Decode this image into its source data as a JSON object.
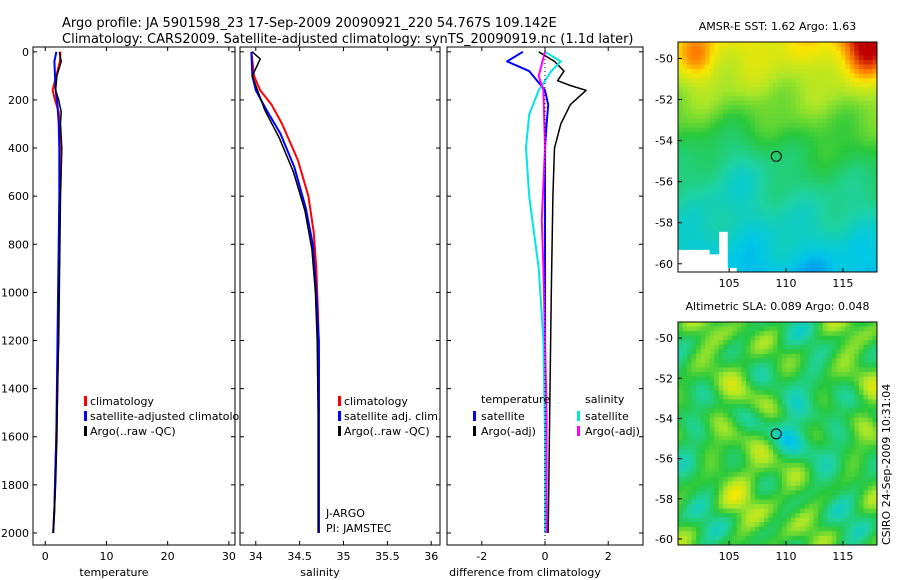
{
  "header": {
    "line1": "Argo profile: JA 5901598_23 17-Sep-2009 20090921_220 54.767S 109.142E",
    "line2": "Climatology: CARS2009. Satellite-adjusted climatology: synTS_20090919.nc (1.1d later)"
  },
  "stamp": "CSIRO 24-Sep-2009 10:31:04",
  "colors": {
    "red": "#ff0000",
    "blue": "#0000ff",
    "black": "#000000",
    "cyan": "#00e6e6",
    "magenta": "#ff00ff"
  },
  "chart_data": [
    {
      "type": "line",
      "id": "temperature",
      "xlabel": "temperature",
      "ylabel": "",
      "xlim": [
        -2,
        31
      ],
      "ylim": [
        2050,
        -20
      ],
      "xticks": [
        0,
        10,
        20,
        30
      ],
      "yticks": [
        0,
        200,
        400,
        600,
        800,
        1000,
        1200,
        1400,
        1600,
        1800,
        2000
      ],
      "series": [
        {
          "name": "climatology",
          "color": "red",
          "width": 2,
          "x": [
            2.5,
            2.4,
            1.8,
            1.2,
            1.6,
            2.2,
            2.4,
            2.4,
            2.4,
            2.3,
            2.2,
            2.1,
            2.0,
            1.9,
            1.8,
            1.6,
            1.5,
            1.3
          ],
          "y": [
            0,
            40,
            100,
            160,
            200,
            250,
            300,
            400,
            600,
            800,
            1000,
            1200,
            1400,
            1500,
            1600,
            1800,
            1900,
            2000
          ]
        },
        {
          "name": "satellite-adjusted climatology",
          "color": "blue",
          "width": 2,
          "x": [
            1.8,
            1.5,
            1.6,
            1.7,
            2.0,
            2.2,
            2.3,
            2.3,
            2.3,
            2.2,
            2.1,
            2.0,
            1.9,
            1.8,
            1.6,
            1.5,
            1.3
          ],
          "y": [
            0,
            40,
            100,
            160,
            220,
            300,
            400,
            500,
            600,
            800,
            1000,
            1200,
            1400,
            1600,
            1800,
            1900,
            2000
          ]
        },
        {
          "name": "Argo(..raw -QC)",
          "color": "black",
          "width": 1.5,
          "x": [
            2.3,
            2.6,
            1.9,
            1.7,
            2.2,
            2.6,
            2.5,
            2.7,
            2.6,
            2.5,
            2.4,
            2.3,
            2.2,
            2.0,
            1.9,
            1.7,
            1.5,
            1.3
          ],
          "y": [
            0,
            40,
            100,
            160,
            200,
            250,
            300,
            400,
            500,
            600,
            800,
            1000,
            1200,
            1400,
            1600,
            1800,
            1900,
            2000
          ]
        }
      ],
      "legend": [
        "climatology",
        "satellite-adjusted climatology",
        "Argo(..raw -QC)"
      ]
    },
    {
      "type": "line",
      "id": "salinity",
      "xlabel": "salinity",
      "ylabel": "",
      "xlim": [
        33.82,
        36.1
      ],
      "ylim": [
        2050,
        -20
      ],
      "xticks": [
        34,
        34.5,
        35,
        35.5,
        36
      ],
      "xticklabels": [
        "34",
        "34.5",
        "35",
        "35.5",
        "36"
      ],
      "series": [
        {
          "name": "climatology",
          "color": "red",
          "width": 2,
          "x": [
            33.95,
            33.98,
            34.05,
            34.18,
            34.3,
            34.48,
            34.6,
            34.66,
            34.69,
            34.71,
            34.72,
            34.72,
            34.72,
            34.72
          ],
          "y": [
            0,
            100,
            160,
            220,
            300,
            450,
            600,
            750,
            900,
            1100,
            1300,
            1500,
            1800,
            2000
          ]
        },
        {
          "name": "satellite adj. clim.",
          "color": "blue",
          "width": 2,
          "x": [
            33.95,
            33.96,
            34.0,
            34.12,
            34.28,
            34.44,
            34.57,
            34.65,
            34.69,
            34.72,
            34.72,
            34.72,
            34.72
          ],
          "y": [
            0,
            100,
            160,
            240,
            340,
            480,
            650,
            800,
            1000,
            1200,
            1500,
            1800,
            2000
          ]
        },
        {
          "name": "Argo(..raw -QC)",
          "color": "black",
          "width": 1.5,
          "x": [
            33.96,
            34.05,
            33.96,
            34.02,
            34.1,
            34.27,
            34.43,
            34.56,
            34.64,
            34.68,
            34.7,
            34.71,
            34.71,
            34.71
          ],
          "y": [
            0,
            30,
            100,
            160,
            240,
            360,
            500,
            660,
            820,
            1000,
            1200,
            1500,
            1800,
            2000
          ]
        }
      ],
      "legend": [
        "climatology",
        "satellite adj. clim.",
        "Argo(..raw -QC)"
      ],
      "annotations": [
        "J-ARGO",
        "PI: JAMSTEC"
      ]
    },
    {
      "type": "line",
      "id": "difference",
      "xlabel": "difference from climatology",
      "ylabel": "",
      "xlim": [
        -3.1,
        3.1
      ],
      "ylim": [
        2050,
        -20
      ],
      "xticks": [
        -2,
        0,
        2
      ],
      "series": [
        {
          "name": "temperature satellite",
          "color": "blue",
          "width": 2,
          "x": [
            -0.7,
            -1.2,
            -0.5,
            0.0,
            0.1,
            0.05,
            0.0,
            0.0,
            0.0,
            0.0,
            0.0,
            0.0,
            0.0
          ],
          "y": [
            0,
            40,
            80,
            160,
            220,
            300,
            400,
            600,
            800,
            1000,
            1400,
            1800,
            2000
          ]
        },
        {
          "name": "temperature Argo(-adj)",
          "color": "black",
          "width": 1.5,
          "x": [
            -0.2,
            0.3,
            0.6,
            0.4,
            0.8,
            1.3,
            0.8,
            0.5,
            0.3,
            0.25,
            0.2,
            0.15,
            0.1
          ],
          "y": [
            0,
            40,
            80,
            120,
            140,
            160,
            220,
            300,
            400,
            600,
            1000,
            1500,
            2000
          ]
        },
        {
          "name": "salinity satellite",
          "color": "cyan",
          "width": 2,
          "x": [
            0.0,
            0.5,
            0.2,
            -0.2,
            -0.5,
            -0.6,
            -0.5,
            -0.2,
            -0.05,
            0.0,
            0.0
          ],
          "y": [
            0,
            40,
            80,
            160,
            260,
            400,
            600,
            900,
            1200,
            1600,
            2000
          ]
        },
        {
          "name": "salinity Argo(-adj)",
          "color": "magenta",
          "width": 2,
          "x": [
            0.0,
            -0.2,
            -0.05,
            0.0,
            -0.1,
            -0.05,
            0.0,
            0.05,
            0.05,
            0.05
          ],
          "y": [
            0,
            100,
            160,
            400,
            700,
            900,
            1200,
            1500,
            1800,
            2000
          ]
        }
      ],
      "legend_groups": [
        {
          "title": "temperature",
          "items": [
            "satellite",
            "Argo(-adj)"
          ]
        },
        {
          "title": "salinity",
          "items": [
            "satellite",
            "Argo(-adj)"
          ]
        }
      ]
    },
    {
      "type": "heatmap",
      "id": "sst-map",
      "title": "AMSR-E SST: 1.62 Argo: 1.63",
      "xlim": [
        100.5,
        118
      ],
      "ylim": [
        -60.4,
        -49.2
      ],
      "xticks": [
        105,
        110,
        115
      ],
      "yticks": [
        -50,
        -52,
        -54,
        -56,
        -58,
        -60
      ],
      "marker": {
        "lon": 109.142,
        "lat": -54.767
      }
    },
    {
      "type": "heatmap",
      "id": "sla-map",
      "title": "Altimetric SLA: 0.089 Argo: 0.048",
      "xlim": [
        100.5,
        118
      ],
      "ylim": [
        -60.3,
        -49.2
      ],
      "xticks": [
        105,
        110,
        115
      ],
      "yticks": [
        -50,
        -52,
        -54,
        -56,
        -58,
        -60
      ],
      "marker": {
        "lon": 109.142,
        "lat": -54.767
      }
    }
  ]
}
